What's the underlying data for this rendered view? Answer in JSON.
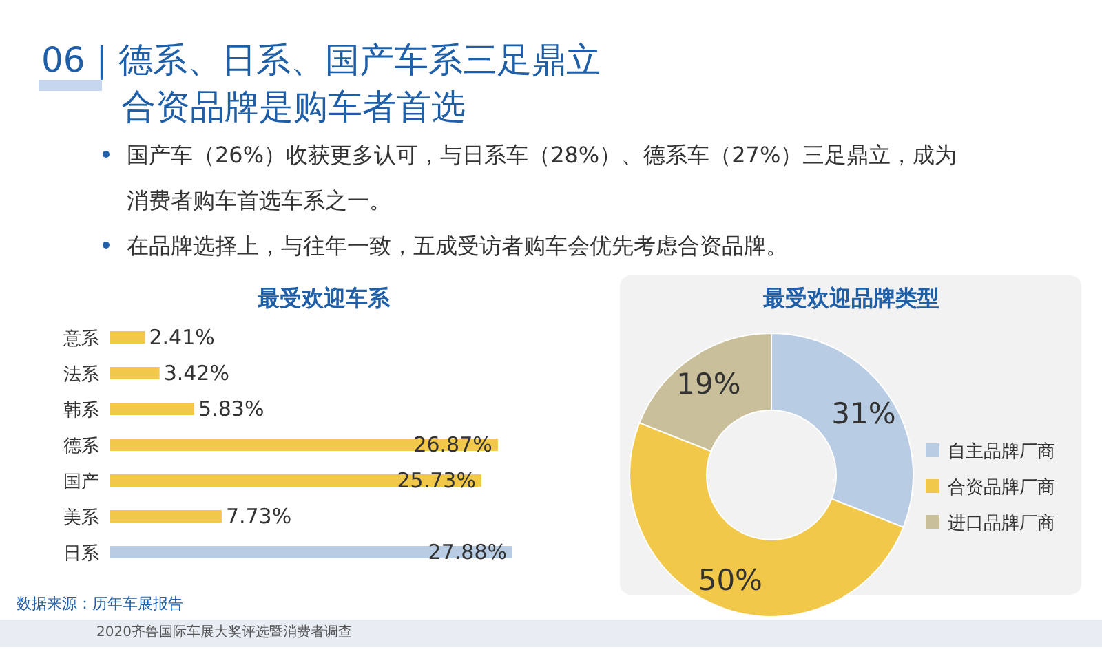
{
  "chart_data": [
    {
      "type": "other",
      "title": "06 | 德系、日系、国产车系三足鼎立",
      "subtitle": "合资品牌是购车者首选",
      "annotations": [
        "国产车（26%）收获更多认可，与日系车（28%）、德系车（27%）三足鼎立，成为",
        "消费者购车首选车系之一。",
        "在品牌选择上，与往年一致，五成受访者购车会优先考虑合资品牌。",
        "数据来源：历年车展报告",
        "2020齐鲁国际车展大奖评选暨消费者调查"
      ]
    },
    {
      "type": "bar",
      "orientation": "horizontal",
      "title": "最受欢迎车系",
      "categories": [
        "意系",
        "法系",
        "韩系",
        "德系",
        "国产",
        "美系",
        "日系"
      ],
      "values": [
        2.41,
        3.42,
        5.83,
        26.87,
        25.73,
        7.73,
        27.88
      ],
      "value_labels": [
        "2.41%",
        "3.42%",
        "5.83%",
        "26.87%",
        "25.73%",
        "7.73%",
        "27.88%"
      ],
      "colors": [
        "#f2c84b",
        "#f2c84b",
        "#f2c84b",
        "#f2c84b",
        "#f2c84b",
        "#f2c84b",
        "#b8cce4"
      ]
    },
    {
      "type": "donut",
      "title": "最受欢迎品牌类型",
      "categories": [
        "自主品牌厂商",
        "合资品牌厂商",
        "进口品牌厂商"
      ],
      "values": [
        31,
        50,
        19
      ],
      "value_labels": [
        "31%",
        "50%",
        "19%"
      ],
      "colors": [
        "#b8cce4",
        "#f2c84b",
        "#c9bf9a"
      ],
      "legend": "right"
    }
  ]
}
